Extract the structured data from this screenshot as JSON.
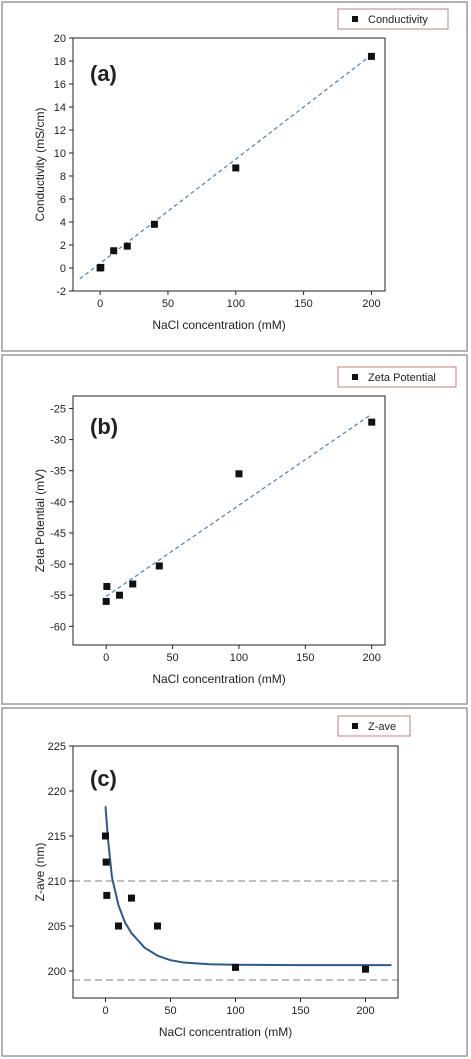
{
  "chart_data": [
    {
      "type": "scatter",
      "panel_label": "(a)",
      "xlabel": "NaCl concentration (mM)",
      "ylabel": "Conductivity (mS/cm)",
      "xlim": [
        -20,
        210
      ],
      "ylim": [
        -2,
        20
      ],
      "xticks": [
        0,
        50,
        100,
        150,
        200
      ],
      "yticks": [
        -2,
        0,
        2,
        4,
        6,
        8,
        10,
        12,
        14,
        16,
        18,
        20
      ],
      "legend_position": "top-right",
      "series": [
        {
          "name": "Conductivity",
          "x": [
            0,
            0.5,
            10,
            20,
            40,
            100,
            200
          ],
          "y": [
            0.0,
            0.05,
            1.5,
            1.9,
            3.8,
            8.7,
            18.4
          ]
        }
      ],
      "fit": {
        "style": "dashed",
        "color": "#4a7fc1",
        "x": [
          -15,
          202
        ],
        "y": [
          -0.95,
          18.7
        ]
      },
      "reference_lines": []
    },
    {
      "type": "scatter",
      "panel_label": "(b)",
      "xlabel": "NaCl concentration (mM)",
      "ylabel": "Zeta Potential (mV)",
      "xlim": [
        -25,
        210
      ],
      "ylim": [
        -63,
        -23
      ],
      "xticks": [
        0,
        50,
        100,
        150,
        200
      ],
      "yticks": [
        -60,
        -55,
        -50,
        -45,
        -40,
        -35,
        -30,
        -25
      ],
      "legend_position": "top-right",
      "series": [
        {
          "name": "Zeta Potential",
          "x": [
            0,
            0.5,
            10,
            20,
            40,
            100,
            200
          ],
          "y": [
            -56.0,
            -53.6,
            -55.0,
            -53.2,
            -50.3,
            -35.5,
            -27.2
          ]
        }
      ],
      "fit": {
        "style": "dashed",
        "color": "#4a7fc1",
        "x": [
          0,
          200
        ],
        "y": [
          -55.2,
          -25.9
        ]
      },
      "reference_lines": []
    },
    {
      "type": "scatter",
      "panel_label": "(c)",
      "xlabel": "NaCl concentration (mM)",
      "ylabel": "Z-ave (nm)",
      "xlim": [
        -25,
        225
      ],
      "ylim": [
        197,
        225
      ],
      "xticks": [
        0,
        50,
        100,
        150,
        200
      ],
      "yticks": [
        200,
        205,
        210,
        215,
        220,
        225
      ],
      "legend_position": "top-right",
      "series": [
        {
          "name": "Z-ave",
          "x": [
            0,
            0.5,
            1,
            10,
            20,
            40,
            100,
            200
          ],
          "y": [
            215.0,
            212.1,
            208.4,
            205.0,
            208.1,
            205.0,
            200.4,
            200.2
          ]
        }
      ],
      "fit": {
        "style": "solid",
        "color": "#2c5a8a",
        "x": [
          0,
          2,
          5,
          10,
          15,
          20,
          30,
          40,
          50,
          60,
          80,
          100,
          150,
          220
        ],
        "y": [
          218.3,
          214.5,
          210.4,
          207.3,
          205.4,
          204.2,
          202.6,
          201.7,
          201.2,
          200.95,
          200.75,
          200.7,
          200.65,
          200.65
        ]
      },
      "reference_lines": [
        {
          "axis": "y",
          "value": 210,
          "style": "dashed",
          "color": "#999999"
        },
        {
          "axis": "y",
          "value": 199,
          "style": "dashed",
          "color": "#999999"
        }
      ]
    }
  ]
}
